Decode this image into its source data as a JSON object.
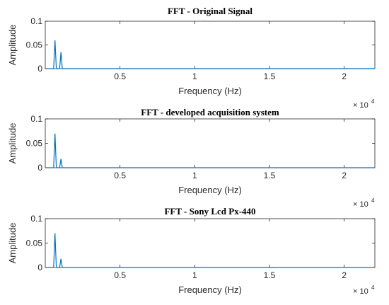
{
  "chart_data": [
    {
      "type": "line",
      "title": "FFT - Original Signal",
      "xlabel": "Frequency (Hz)",
      "ylabel": "Amplitude",
      "x_multiplier": "× 10",
      "x_multiplier_exp": "4",
      "xlim": [
        0,
        22050
      ],
      "ylim": [
        0,
        0.1
      ],
      "xticks": [
        0.5,
        1,
        1.5,
        2
      ],
      "xtick_labels": [
        "0.5",
        "1",
        "1.5",
        "2"
      ],
      "yticks": [
        0,
        0.05,
        0.1
      ],
      "ytick_labels": [
        "0",
        "0.05",
        "0.1"
      ],
      "color": "#0072BD",
      "grid": false,
      "series": [
        {
          "peaks": [
            {
              "x": 650,
              "y": 0.06
            },
            {
              "x": 1050,
              "y": 0.035
            }
          ]
        }
      ]
    },
    {
      "type": "line",
      "title": "FFT - developed acquisition system",
      "xlabel": "Frequency (Hz)",
      "ylabel": "Amplitude",
      "x_multiplier": "× 10",
      "x_multiplier_exp": "4",
      "xlim": [
        0,
        22050
      ],
      "ylim": [
        0,
        0.1
      ],
      "xticks": [
        0.5,
        1,
        1.5,
        2
      ],
      "xtick_labels": [
        "0.5",
        "1",
        "1.5",
        "2"
      ],
      "yticks": [
        0,
        0.05,
        0.1
      ],
      "ytick_labels": [
        "0",
        "0.05",
        "0.1"
      ],
      "color": "#0072BD",
      "grid": false,
      "series": [
        {
          "peaks": [
            {
              "x": 650,
              "y": 0.07
            },
            {
              "x": 1050,
              "y": 0.018
            }
          ]
        }
      ]
    },
    {
      "type": "line",
      "title": "FFT - Sony Lcd Px-440",
      "xlabel": "Frequency (Hz)",
      "ylabel": "Amplitude",
      "x_multiplier": "× 10",
      "x_multiplier_exp": "4",
      "xlim": [
        0,
        22050
      ],
      "ylim": [
        0,
        0.1
      ],
      "xticks": [
        0.5,
        1,
        1.5,
        2
      ],
      "xtick_labels": [
        "0.5",
        "1",
        "1.5",
        "2"
      ],
      "yticks": [
        0,
        0.05,
        0.1
      ],
      "ytick_labels": [
        "0",
        "0.05",
        "0.1"
      ],
      "color": "#0072BD",
      "grid": false,
      "series": [
        {
          "peaks": [
            {
              "x": 650,
              "y": 0.07
            },
            {
              "x": 1050,
              "y": 0.018
            }
          ]
        }
      ]
    }
  ]
}
